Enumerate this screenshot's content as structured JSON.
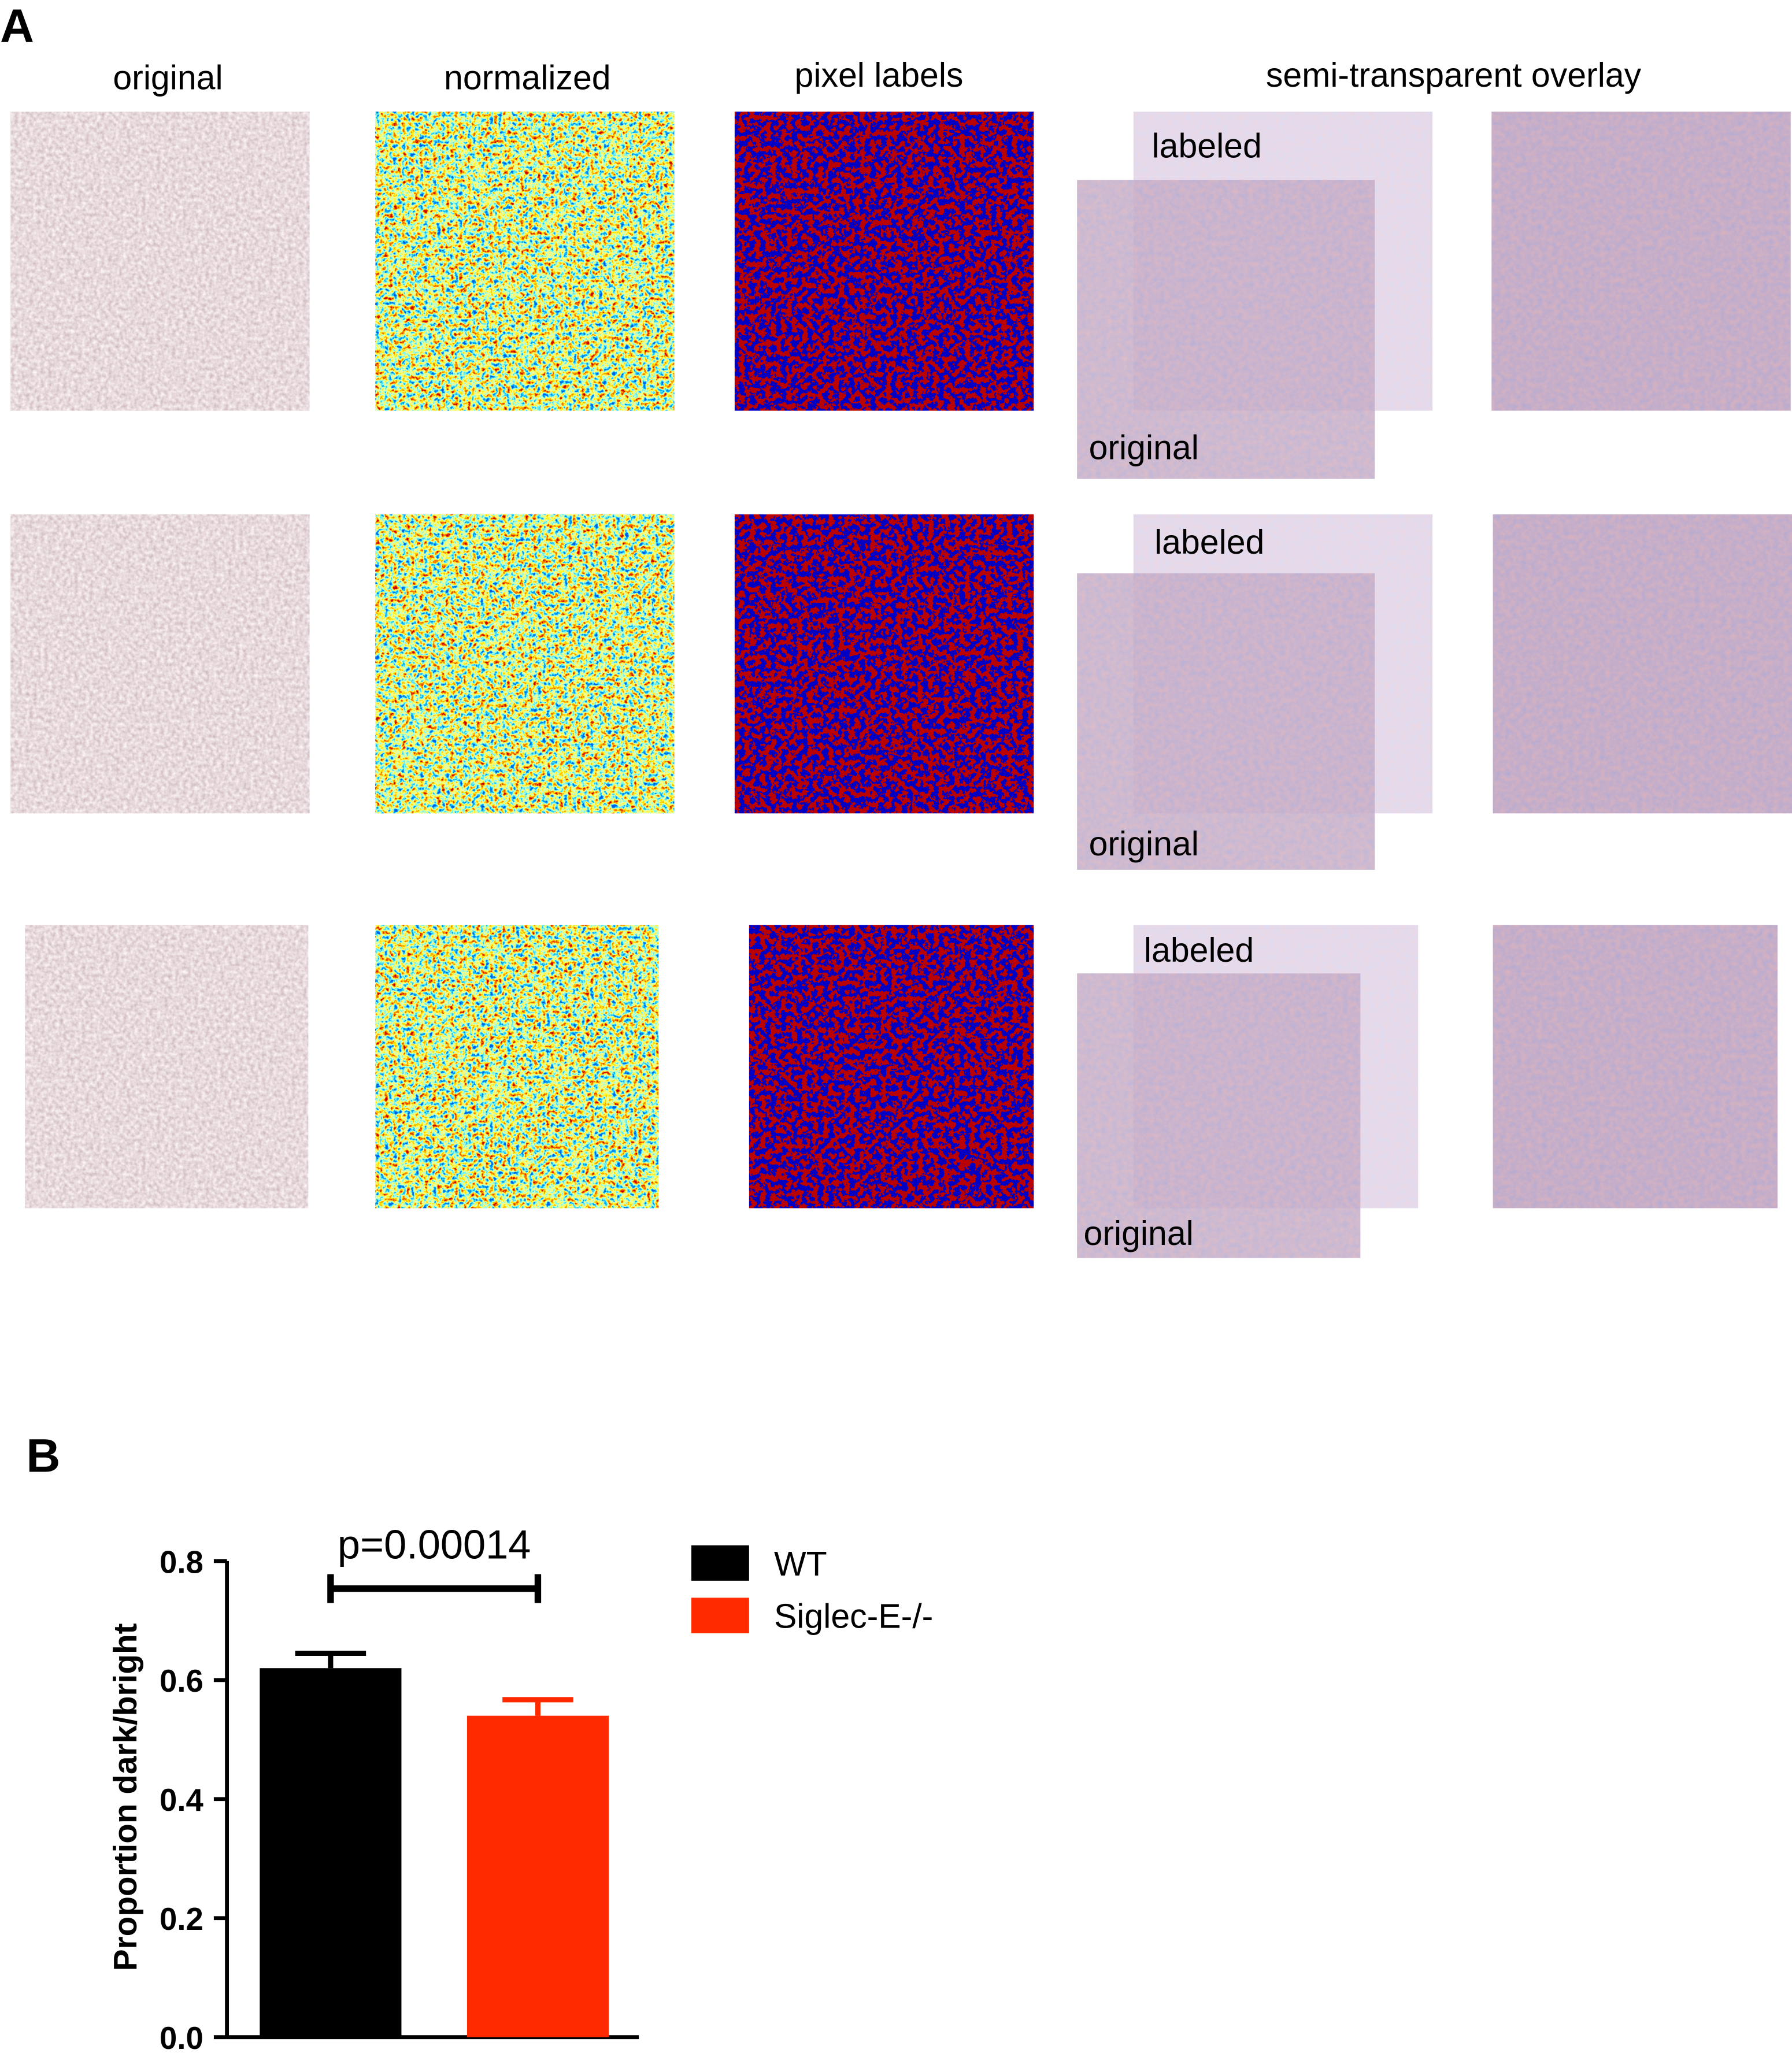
{
  "panel_a": {
    "label": "A",
    "column_titles": [
      "original",
      "normalized",
      "pixel labels",
      "semi-transparent overlay"
    ],
    "overlay_labels": [
      {
        "top": "labeled",
        "bottom": "original"
      },
      {
        "top": "labeled",
        "bottom": "original"
      },
      {
        "top": "labeled",
        "bottom": "original"
      }
    ]
  },
  "panel_b": {
    "label": "B"
  },
  "chart_data": {
    "type": "bar",
    "ylabel": "Proportion dark/bright",
    "annotation": "p=0.00014",
    "series": [
      {
        "name": "WT",
        "color": "#000000",
        "values": [
          0.62
        ],
        "errors": [
          0.025
        ]
      },
      {
        "name": "Siglec-E-/-",
        "color": "#ff2a00",
        "values": [
          0.54
        ],
        "errors": [
          0.027
        ]
      }
    ],
    "ylim": [
      0,
      0.8
    ],
    "yticks": [
      {
        "value": 0,
        "label": "0.0"
      },
      0.2,
      0.4,
      0.6,
      0.8
    ]
  }
}
